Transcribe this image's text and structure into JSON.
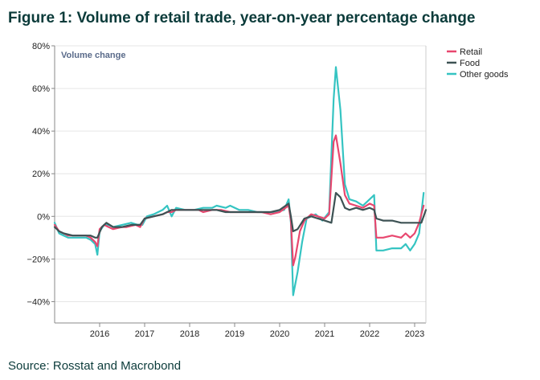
{
  "title": "Figure 1: Volume of retail trade, year-on-year percentage change",
  "source": "Source:  Rosstat and Macrobond",
  "chart_data": {
    "type": "line",
    "title": "Figure 1: Volume of retail trade, year-on-year percentage change",
    "inner_label": "Volume change",
    "xlabel": "",
    "ylabel": "",
    "xlim": [
      2015.0,
      2023.25
    ],
    "ylim": [
      -50,
      80
    ],
    "yticks": [
      80,
      60,
      40,
      20,
      0,
      -20,
      -40
    ],
    "ytick_labels": [
      "80%",
      "60%",
      "40%",
      "20%",
      "0%",
      "−20%",
      "−40%"
    ],
    "xticks": [
      2016,
      2017,
      2018,
      2019,
      2020,
      2021,
      2022,
      2023
    ],
    "xtick_labels": [
      "2016",
      "2017",
      "2018",
      "2019",
      "2020",
      "2021",
      "2022",
      "2023"
    ],
    "legend_position": "top-right",
    "series": [
      {
        "name": "Retail",
        "color": "#e8476f",
        "points": [
          [
            2015.0,
            -4
          ],
          [
            2015.1,
            -7
          ],
          [
            2015.2,
            -8
          ],
          [
            2015.3,
            -9
          ],
          [
            2015.5,
            -9
          ],
          [
            2015.7,
            -9
          ],
          [
            2015.8,
            -10
          ],
          [
            2015.9,
            -12
          ],
          [
            2015.95,
            -14
          ],
          [
            2016.0,
            -6
          ],
          [
            2016.1,
            -4
          ],
          [
            2016.2,
            -5
          ],
          [
            2016.3,
            -6
          ],
          [
            2016.5,
            -5
          ],
          [
            2016.6,
            -5
          ],
          [
            2016.8,
            -4
          ],
          [
            2016.9,
            -5
          ],
          [
            2017.0,
            -1
          ],
          [
            2017.2,
            0
          ],
          [
            2017.4,
            1
          ],
          [
            2017.5,
            2
          ],
          [
            2017.6,
            2
          ],
          [
            2017.7,
            3
          ],
          [
            2017.8,
            3
          ],
          [
            2018.0,
            3
          ],
          [
            2018.2,
            3
          ],
          [
            2018.3,
            2
          ],
          [
            2018.5,
            3
          ],
          [
            2018.7,
            3
          ],
          [
            2018.9,
            2
          ],
          [
            2019.0,
            2
          ],
          [
            2019.2,
            2
          ],
          [
            2019.4,
            2
          ],
          [
            2019.6,
            2
          ],
          [
            2019.8,
            1
          ],
          [
            2020.0,
            2
          ],
          [
            2020.2,
            5
          ],
          [
            2020.25,
            -2
          ],
          [
            2020.3,
            -23
          ],
          [
            2020.35,
            -19
          ],
          [
            2020.45,
            -7
          ],
          [
            2020.55,
            -2
          ],
          [
            2020.7,
            1
          ],
          [
            2020.85,
            0
          ],
          [
            2021.0,
            -1
          ],
          [
            2021.1,
            1
          ],
          [
            2021.2,
            35
          ],
          [
            2021.25,
            38
          ],
          [
            2021.35,
            25
          ],
          [
            2021.45,
            10
          ],
          [
            2021.55,
            6
          ],
          [
            2021.7,
            5
          ],
          [
            2021.85,
            4
          ],
          [
            2022.0,
            6
          ],
          [
            2022.1,
            5
          ],
          [
            2022.15,
            -10
          ],
          [
            2022.3,
            -10
          ],
          [
            2022.5,
            -9
          ],
          [
            2022.7,
            -10
          ],
          [
            2022.8,
            -8
          ],
          [
            2022.9,
            -10
          ],
          [
            2023.0,
            -8
          ],
          [
            2023.1,
            -3
          ],
          [
            2023.2,
            5
          ]
        ]
      },
      {
        "name": "Food",
        "color": "#3d5254",
        "points": [
          [
            2015.0,
            -5
          ],
          [
            2015.1,
            -7
          ],
          [
            2015.2,
            -8
          ],
          [
            2015.4,
            -9
          ],
          [
            2015.6,
            -9
          ],
          [
            2015.8,
            -9
          ],
          [
            2015.9,
            -10
          ],
          [
            2015.95,
            -10
          ],
          [
            2016.05,
            -5
          ],
          [
            2016.15,
            -3
          ],
          [
            2016.3,
            -5
          ],
          [
            2016.5,
            -5
          ],
          [
            2016.7,
            -4
          ],
          [
            2016.9,
            -4
          ],
          [
            2017.0,
            -1
          ],
          [
            2017.2,
            0
          ],
          [
            2017.4,
            1
          ],
          [
            2017.6,
            3
          ],
          [
            2017.8,
            3
          ],
          [
            2018.0,
            3
          ],
          [
            2018.2,
            3
          ],
          [
            2018.4,
            3
          ],
          [
            2018.6,
            3
          ],
          [
            2018.8,
            2
          ],
          [
            2019.0,
            2
          ],
          [
            2019.2,
            2
          ],
          [
            2019.4,
            2
          ],
          [
            2019.6,
            2
          ],
          [
            2019.8,
            2
          ],
          [
            2020.0,
            3
          ],
          [
            2020.2,
            6
          ],
          [
            2020.25,
            0
          ],
          [
            2020.3,
            -7
          ],
          [
            2020.4,
            -6
          ],
          [
            2020.55,
            -1
          ],
          [
            2020.7,
            0
          ],
          [
            2020.85,
            -1
          ],
          [
            2021.0,
            -2
          ],
          [
            2021.15,
            -3
          ],
          [
            2021.25,
            11
          ],
          [
            2021.35,
            9
          ],
          [
            2021.45,
            4
          ],
          [
            2021.55,
            3
          ],
          [
            2021.7,
            4
          ],
          [
            2021.85,
            3
          ],
          [
            2022.0,
            4
          ],
          [
            2022.1,
            3
          ],
          [
            2022.15,
            -1
          ],
          [
            2022.3,
            -2
          ],
          [
            2022.5,
            -2
          ],
          [
            2022.7,
            -3
          ],
          [
            2022.85,
            -3
          ],
          [
            2023.0,
            -3
          ],
          [
            2023.15,
            -3
          ],
          [
            2023.25,
            3
          ]
        ]
      },
      {
        "name": "Other goods",
        "color": "#35c4c2",
        "points": [
          [
            2015.0,
            -3
          ],
          [
            2015.1,
            -8
          ],
          [
            2015.2,
            -9
          ],
          [
            2015.3,
            -10
          ],
          [
            2015.5,
            -10
          ],
          [
            2015.7,
            -10
          ],
          [
            2015.8,
            -11
          ],
          [
            2015.9,
            -13
          ],
          [
            2015.95,
            -18
          ],
          [
            2016.0,
            -7
          ],
          [
            2016.1,
            -4
          ],
          [
            2016.2,
            -4
          ],
          [
            2016.3,
            -5
          ],
          [
            2016.5,
            -4
          ],
          [
            2016.7,
            -3
          ],
          [
            2016.85,
            -4
          ],
          [
            2016.95,
            -4
          ],
          [
            2017.05,
            0
          ],
          [
            2017.2,
            1
          ],
          [
            2017.4,
            3
          ],
          [
            2017.5,
            5
          ],
          [
            2017.6,
            0
          ],
          [
            2017.7,
            4
          ],
          [
            2017.9,
            3
          ],
          [
            2018.1,
            3
          ],
          [
            2018.3,
            4
          ],
          [
            2018.5,
            4
          ],
          [
            2018.6,
            5
          ],
          [
            2018.8,
            4
          ],
          [
            2018.9,
            5
          ],
          [
            2019.1,
            3
          ],
          [
            2019.3,
            3
          ],
          [
            2019.5,
            2
          ],
          [
            2019.7,
            2
          ],
          [
            2019.9,
            2
          ],
          [
            2020.1,
            3
          ],
          [
            2020.2,
            8
          ],
          [
            2020.25,
            -3
          ],
          [
            2020.3,
            -37
          ],
          [
            2020.4,
            -26
          ],
          [
            2020.5,
            -12
          ],
          [
            2020.6,
            -1
          ],
          [
            2020.8,
            1
          ],
          [
            2020.95,
            -2
          ],
          [
            2021.1,
            2
          ],
          [
            2021.2,
            55
          ],
          [
            2021.25,
            70
          ],
          [
            2021.35,
            50
          ],
          [
            2021.45,
            15
          ],
          [
            2021.55,
            8
          ],
          [
            2021.7,
            7
          ],
          [
            2021.85,
            5
          ],
          [
            2022.0,
            8
          ],
          [
            2022.1,
            10
          ],
          [
            2022.15,
            -16
          ],
          [
            2022.3,
            -16
          ],
          [
            2022.5,
            -15
          ],
          [
            2022.7,
            -15
          ],
          [
            2022.8,
            -13
          ],
          [
            2022.9,
            -16
          ],
          [
            2023.0,
            -13
          ],
          [
            2023.1,
            -8
          ],
          [
            2023.2,
            11
          ]
        ]
      }
    ]
  }
}
